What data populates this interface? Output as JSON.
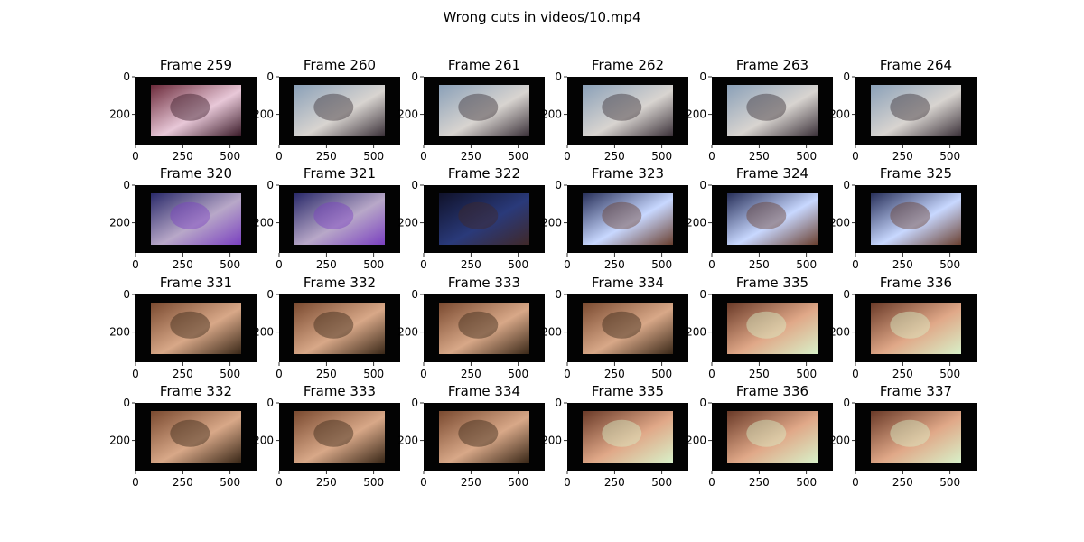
{
  "figure": {
    "title": "Wrong cuts in videos/10.mp4"
  },
  "axes_common": {
    "x_ticks": [
      "0",
      "250",
      "500"
    ],
    "y_ticks": [
      "0",
      "200"
    ]
  },
  "palette": {
    "stage": [
      "#6b2a3a",
      "#e8c8d8",
      "#3a1a28"
    ],
    "man": [
      "#8aa0b8",
      "#d8d4d0",
      "#3a3038"
    ],
    "party": [
      "#2a2a6a",
      "#b8a8c8",
      "#7a40c0"
    ],
    "dark": [
      "#10122a",
      "#2a3a7a",
      "#402828"
    ],
    "neon": [
      "#28305a",
      "#c8d8ff",
      "#6a4030"
    ],
    "sleep": [
      "#7a4a30",
      "#d8a888",
      "#3a2818"
    ],
    "hand": [
      "#6a3a28",
      "#e0a888",
      "#d8f0c8"
    ]
  },
  "chart_data": [
    {
      "type": "image",
      "title": "Frame 259",
      "scene": "stage"
    },
    {
      "type": "image",
      "title": "Frame 260",
      "scene": "man"
    },
    {
      "type": "image",
      "title": "Frame 261",
      "scene": "man"
    },
    {
      "type": "image",
      "title": "Frame 262",
      "scene": "man"
    },
    {
      "type": "image",
      "title": "Frame 263",
      "scene": "man"
    },
    {
      "type": "image",
      "title": "Frame 264",
      "scene": "man"
    },
    {
      "type": "image",
      "title": "Frame 320",
      "scene": "party"
    },
    {
      "type": "image",
      "title": "Frame 321",
      "scene": "party"
    },
    {
      "type": "image",
      "title": "Frame 322",
      "scene": "dark"
    },
    {
      "type": "image",
      "title": "Frame 323",
      "scene": "neon"
    },
    {
      "type": "image",
      "title": "Frame 324",
      "scene": "neon"
    },
    {
      "type": "image",
      "title": "Frame 325",
      "scene": "neon"
    },
    {
      "type": "image",
      "title": "Frame 331",
      "scene": "sleep"
    },
    {
      "type": "image",
      "title": "Frame 332",
      "scene": "sleep"
    },
    {
      "type": "image",
      "title": "Frame 333",
      "scene": "sleep"
    },
    {
      "type": "image",
      "title": "Frame 334",
      "scene": "sleep"
    },
    {
      "type": "image",
      "title": "Frame 335",
      "scene": "hand"
    },
    {
      "type": "image",
      "title": "Frame 336",
      "scene": "hand"
    },
    {
      "type": "image",
      "title": "Frame 332",
      "scene": "sleep"
    },
    {
      "type": "image",
      "title": "Frame 333",
      "scene": "sleep"
    },
    {
      "type": "image",
      "title": "Frame 334",
      "scene": "sleep"
    },
    {
      "type": "image",
      "title": "Frame 335",
      "scene": "hand"
    },
    {
      "type": "image",
      "title": "Frame 336",
      "scene": "hand"
    },
    {
      "type": "image",
      "title": "Frame 337",
      "scene": "hand"
    }
  ]
}
